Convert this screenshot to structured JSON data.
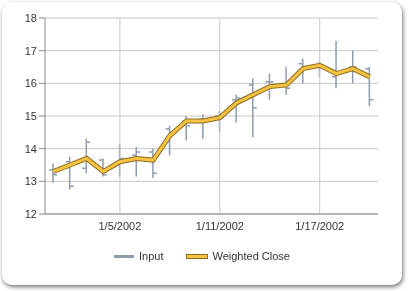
{
  "chart_data": {
    "type": "stock",
    "categories": [
      null,
      null,
      null,
      null,
      "1/5/2002",
      null,
      null,
      null,
      null,
      null,
      "1/11/2002",
      null,
      null,
      null,
      null,
      null,
      "1/17/2002",
      null,
      null,
      null
    ],
    "series": [
      {
        "name": "Input",
        "color": "#8e9cae",
        "high": [
          13.55,
          13.75,
          14.3,
          13.7,
          14.15,
          14.05,
          14.0,
          14.7,
          15.0,
          15.05,
          15.15,
          15.65,
          16.15,
          16.3,
          16.5,
          16.75,
          16.65,
          17.3,
          17.0,
          16.5
        ],
        "low": [
          12.95,
          12.75,
          13.25,
          13.15,
          13.15,
          13.15,
          13.1,
          13.8,
          14.25,
          14.3,
          14.5,
          14.8,
          14.35,
          15.5,
          15.65,
          16.0,
          16.2,
          15.85,
          16.0,
          15.3
        ],
        "open": [
          13.35,
          13.6,
          13.4,
          13.65,
          13.5,
          13.8,
          13.9,
          14.6,
          14.85,
          14.9,
          15.0,
          15.5,
          15.95,
          16.05,
          15.9,
          16.6,
          16.5,
          16.2,
          16.5,
          16.45
        ],
        "close": [
          13.2,
          12.85,
          14.2,
          13.2,
          13.7,
          13.9,
          13.25,
          14.5,
          14.7,
          14.85,
          14.95,
          15.55,
          15.25,
          16.05,
          15.85,
          16.5,
          16.55,
          16.3,
          16.5,
          15.5
        ]
      },
      {
        "name": "Weighted Close",
        "color": "#f5c242",
        "values": [
          13.3,
          13.5,
          13.7,
          13.3,
          13.6,
          13.7,
          13.65,
          14.4,
          14.85,
          14.85,
          14.95,
          15.4,
          15.65,
          15.9,
          15.95,
          16.45,
          16.55,
          16.3,
          16.45,
          16.2
        ]
      }
    ],
    "ylim": [
      12,
      18
    ],
    "yticks": [
      12,
      13,
      14,
      15,
      16,
      17,
      18
    ],
    "grid": true,
    "legend": "bottom"
  }
}
